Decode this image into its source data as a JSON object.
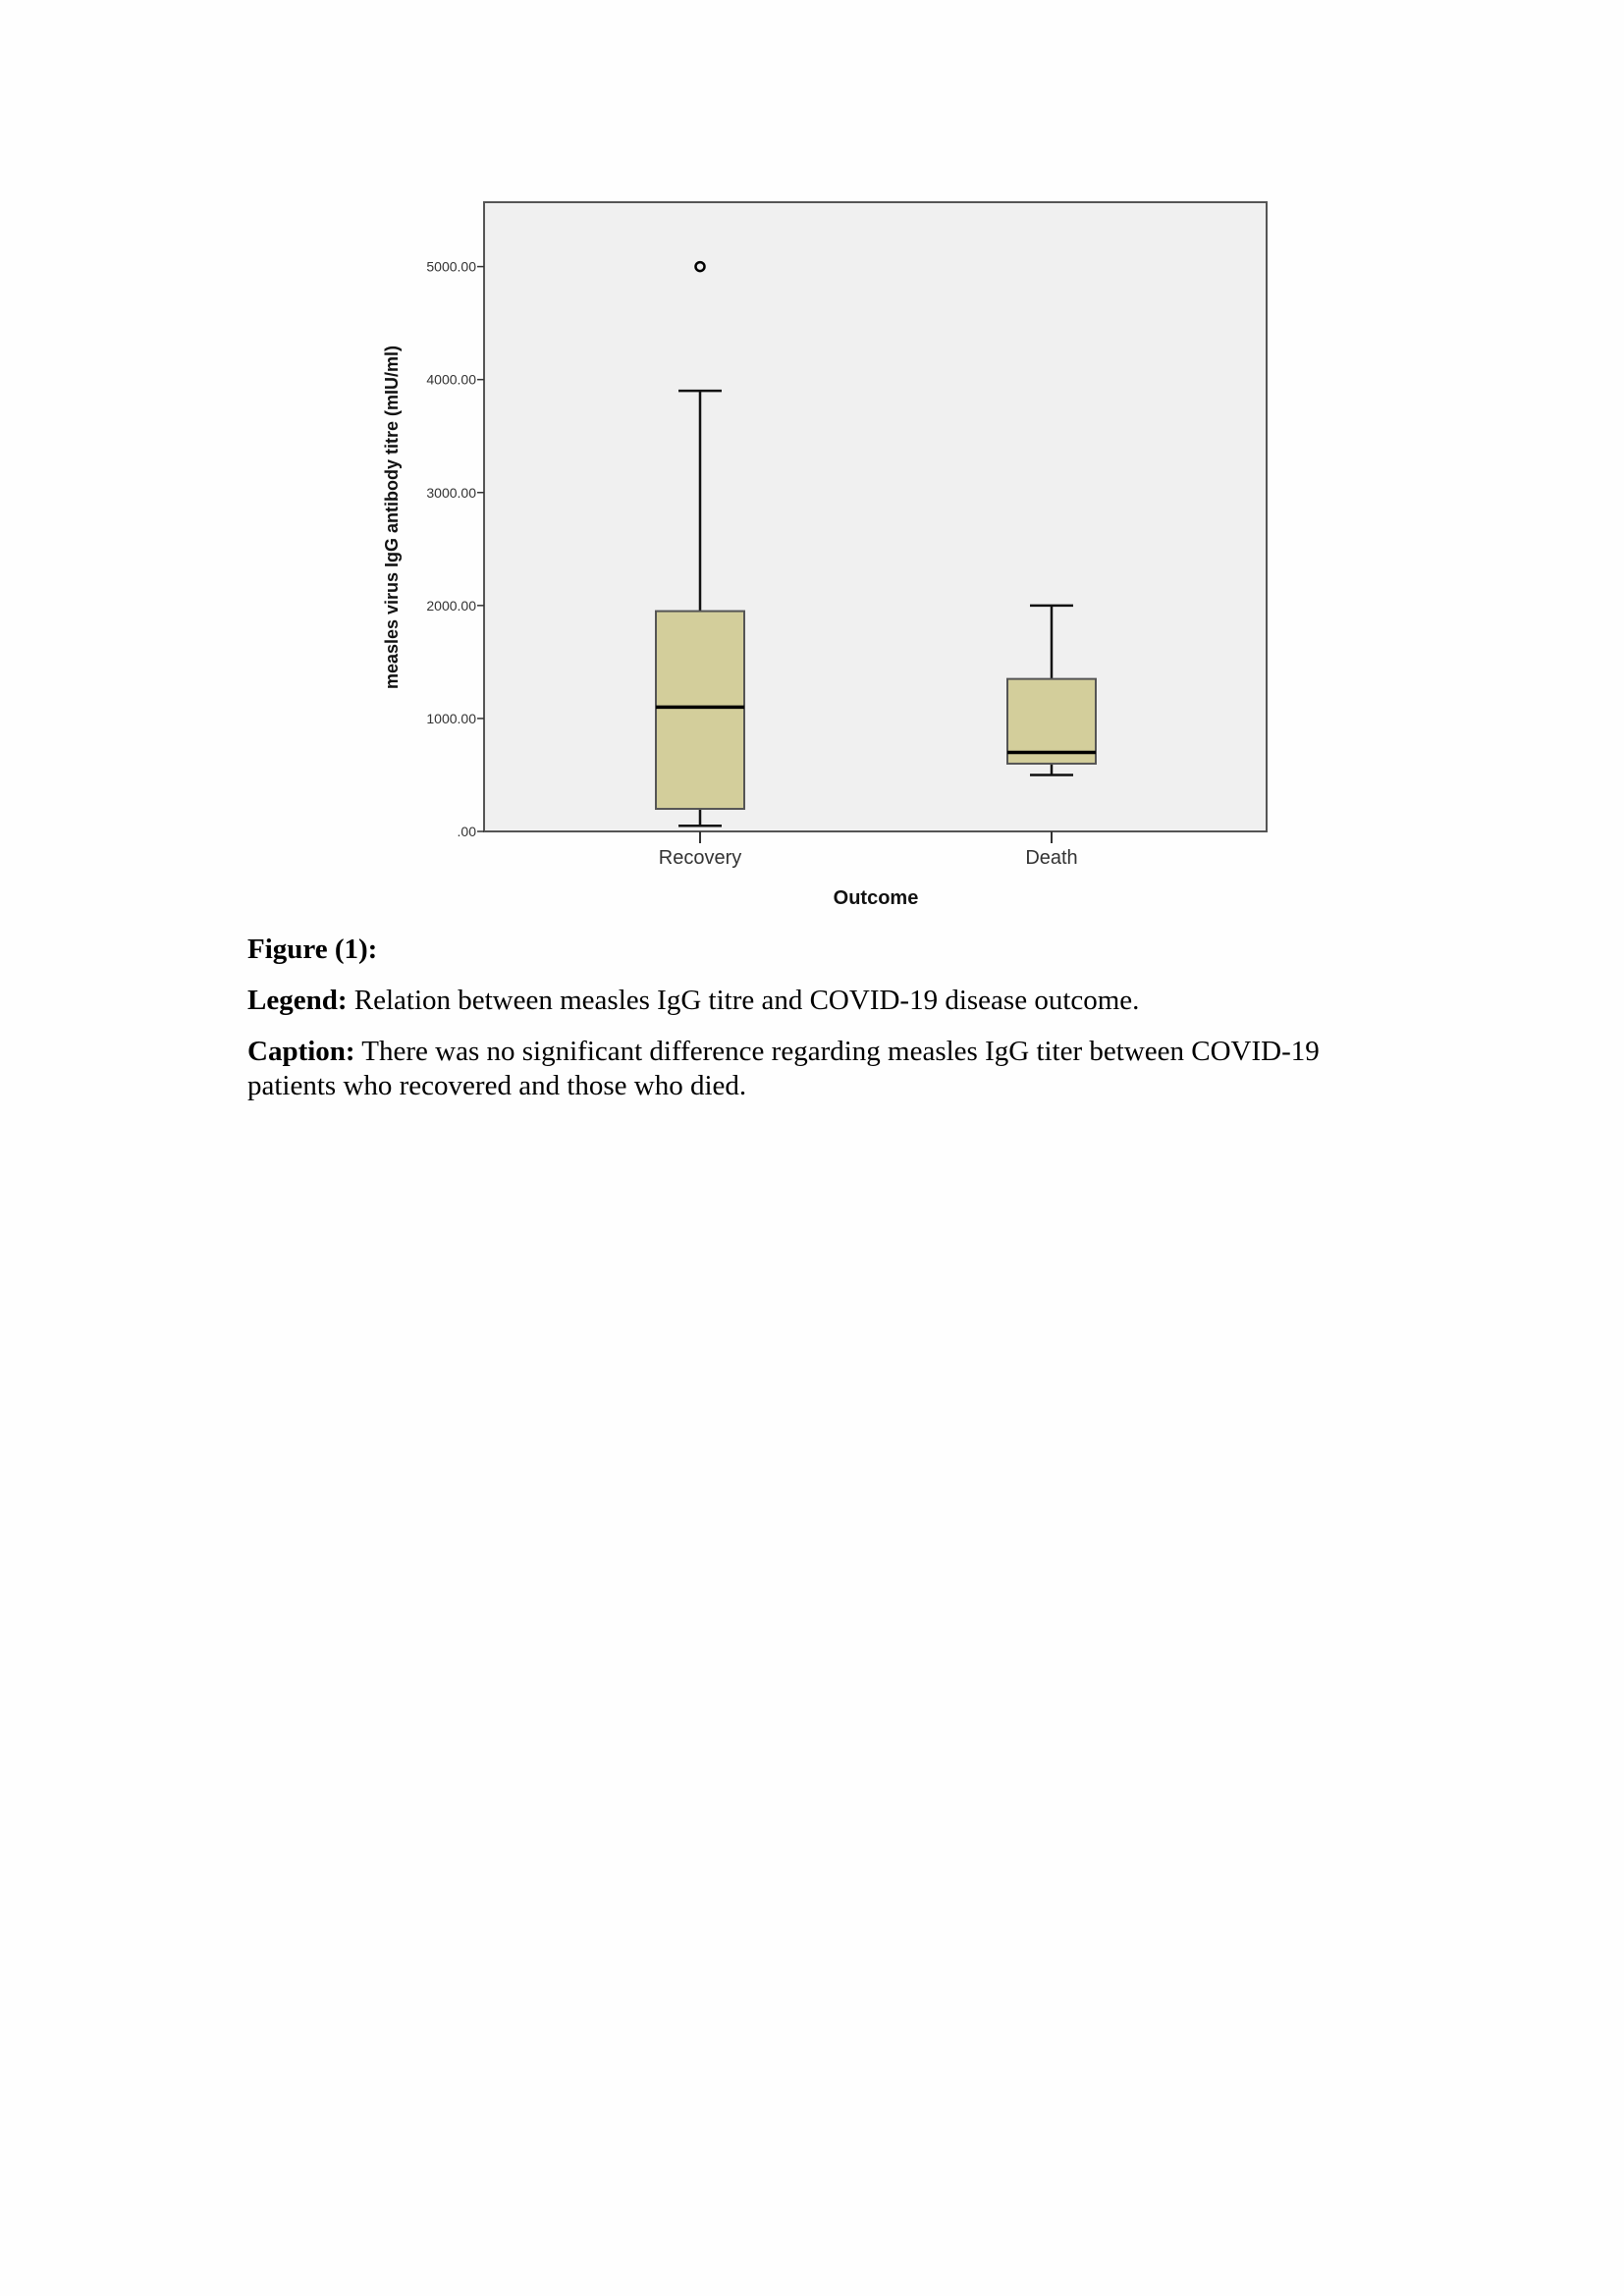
{
  "chart_data": {
    "type": "boxplot",
    "xlabel": "Outcome",
    "ylabel": "measles virus IgG antibody titre (mIU/ml)",
    "categories": [
      "Recovery",
      "Death"
    ],
    "ylim": [
      0,
      5570
    ],
    "yticks": [
      0,
      1000,
      2000,
      3000,
      4000,
      5000
    ],
    "ytick_labels": [
      ".00",
      "1000.00",
      "2000.00",
      "3000.00",
      "4000.00",
      "5000.00"
    ],
    "grid": false,
    "box_color": "#d3ce9b",
    "background_color": "#f0f0f0",
    "boxes": [
      {
        "category": "Recovery",
        "min": 50,
        "q1": 200,
        "median": 1100,
        "q3": 1950,
        "max": 3900,
        "outliers": [
          5000
        ]
      },
      {
        "category": "Death",
        "min": 500,
        "q1": 600,
        "median": 700,
        "q3": 1350,
        "max": 2000,
        "outliers": []
      }
    ]
  },
  "figure": {
    "label": "Figure (1):",
    "legend_label": "Legend:",
    "legend_text": " Relation between measles IgG titre and COVID-19 disease outcome.",
    "caption_label": "Caption:",
    "caption_text": " There was no significant difference regarding measles IgG titer between COVID-19 patients who recovered and those who died."
  }
}
